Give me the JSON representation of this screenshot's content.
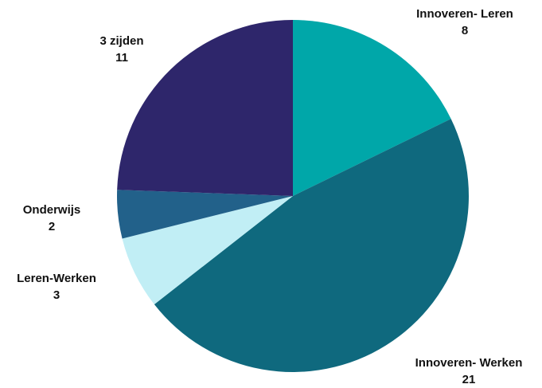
{
  "chart_data": {
    "type": "pie",
    "title": "",
    "slices": [
      {
        "label": "Innoveren- Leren",
        "value": 8,
        "value_text": "8",
        "color": "#00a7a9"
      },
      {
        "label": "Innoveren- Werken",
        "value": 21,
        "value_text": "21",
        "color": "#0f697e"
      },
      {
        "label": "Leren-Werken",
        "value": 3,
        "value_text": "3",
        "color": "#c1eef5"
      },
      {
        "label": "Onderwijs",
        "value": 2,
        "value_text": "2",
        "color": "#22618a"
      },
      {
        "label": "3 zijden",
        "value": 11,
        "value_text": "11",
        "color": "#2e266b"
      }
    ],
    "start": "12 o'clock",
    "direction": "clockwise",
    "legend": "none"
  }
}
